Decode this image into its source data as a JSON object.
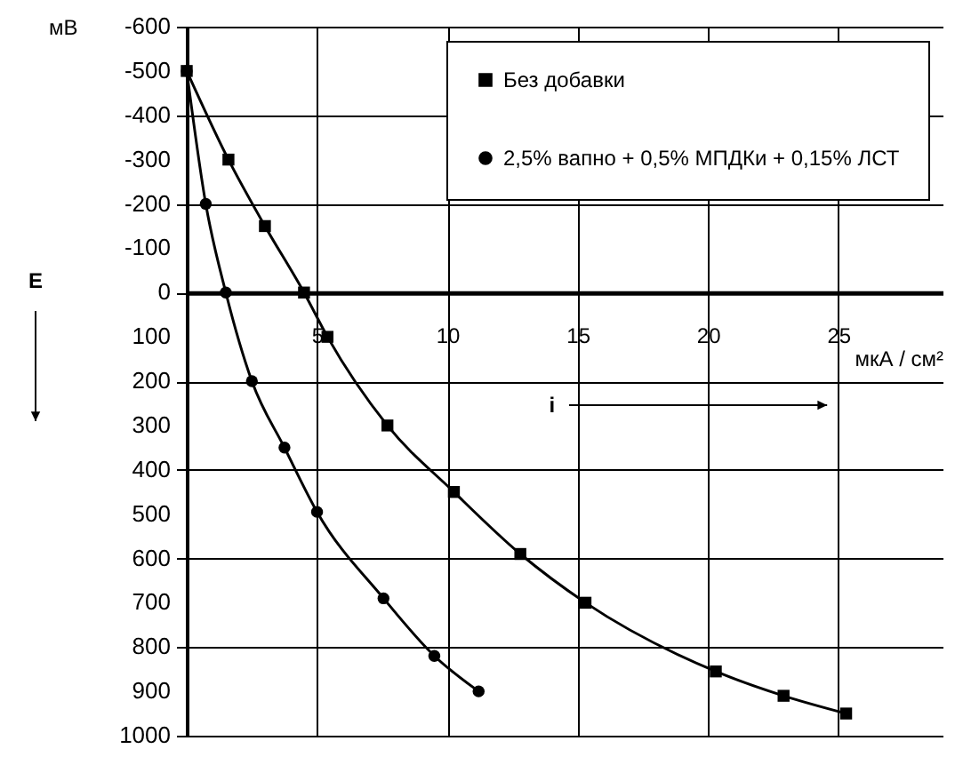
{
  "chart_data": {
    "type": "line",
    "ylabel": "мВ",
    "xlabel": "мкА / см²",
    "annotations": [
      "E",
      "i"
    ],
    "xlim": [
      0,
      29
    ],
    "xticks": [
      5,
      10,
      15,
      20,
      25
    ],
    "ylim": [
      1000,
      -600
    ],
    "yticks": [
      -600,
      -500,
      -400,
      -300,
      -200,
      -100,
      0,
      100,
      200,
      300,
      400,
      500,
      600,
      700,
      800,
      900,
      1000
    ],
    "grid": true,
    "legend": "top right",
    "line_style": "solid",
    "series": [
      {
        "name": "Без добавки",
        "color": "#000000",
        "marker": "square",
        "x": [
          0,
          1.6,
          3.0,
          4.5,
          5.4,
          7.7,
          10.25,
          12.8,
          15.3,
          20.3,
          22.9,
          25.3
        ],
        "values": [
          -500,
          -300,
          -150,
          0,
          100,
          300,
          450,
          590,
          700,
          855,
          910,
          950
        ]
      },
      {
        "name": "2,5% вапно + 0,5% МПДКи + 0,15% ЛСТ",
        "color": "#000000",
        "marker": "circle",
        "x": [
          0,
          0.73,
          1.5,
          2.5,
          3.75,
          5.0,
          7.55,
          9.5,
          11.2
        ],
        "values": [
          -500,
          -200,
          0,
          200,
          350,
          495,
          690,
          820,
          900
        ]
      }
    ]
  }
}
